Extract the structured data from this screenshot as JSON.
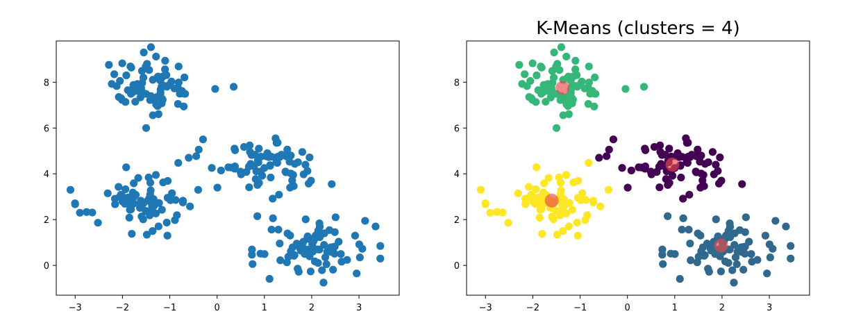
{
  "chart_data": [
    {
      "type": "scatter",
      "title": "",
      "xlabel": "",
      "ylabel": "",
      "xlim": [
        -3.4,
        3.85
      ],
      "ylim": [
        -1.3,
        9.8
      ],
      "xticks": [
        -3,
        -2,
        -1,
        0,
        1,
        2,
        3
      ],
      "yticks": [
        0,
        2,
        4,
        6,
        8
      ],
      "xtick_labels": [
        "−3",
        "−2",
        "−1",
        "0",
        "1",
        "2",
        "3"
      ],
      "ytick_labels": [
        "0",
        "2",
        "4",
        "6",
        "8"
      ],
      "grid": false,
      "point_color": "#1f77b4",
      "clusters": [
        {
          "name": "top-left",
          "center": [
            -1.4,
            7.8
          ],
          "spread": [
            0.55,
            0.55
          ],
          "count": 75
        },
        {
          "name": "middle-right",
          "center": [
            1.0,
            4.4
          ],
          "spread": [
            0.6,
            0.6
          ],
          "count": 75
        },
        {
          "name": "bottom-left",
          "center": [
            -1.6,
            2.8
          ],
          "spread": [
            0.55,
            0.6
          ],
          "count": 75
        },
        {
          "name": "bottom-right",
          "center": [
            2.0,
            0.85
          ],
          "spread": [
            0.55,
            0.55
          ],
          "count": 75
        }
      ],
      "extra_points": [
        [
          -3.1,
          3.3
        ],
        [
          -2.9,
          2.3
        ],
        [
          -0.4,
          3.3
        ],
        [
          3.45,
          0.85
        ],
        [
          3.45,
          0.3
        ],
        [
          3.35,
          1.7
        ],
        [
          2.95,
          -0.35
        ],
        [
          2.25,
          -0.75
        ],
        [
          -1.55,
          9.3
        ],
        [
          0.35,
          7.8
        ],
        [
          0.85,
          2.15
        ],
        [
          -1.05,
          1.3
        ],
        [
          -0.6,
          4.7
        ],
        [
          -1.5,
          6.0
        ]
      ]
    },
    {
      "type": "scatter",
      "title": "K-Means (clusters = 4)",
      "xlabel": "",
      "ylabel": "",
      "xlim": [
        -3.4,
        3.85
      ],
      "ylim": [
        -1.3,
        9.8
      ],
      "xticks": [
        -3,
        -2,
        -1,
        0,
        1,
        2,
        3
      ],
      "yticks": [
        0,
        2,
        4,
        6,
        8
      ],
      "xtick_labels": [
        "−3",
        "−2",
        "−1",
        "0",
        "1",
        "2",
        "3"
      ],
      "ytick_labels": [
        "0",
        "2",
        "4",
        "6",
        "8"
      ],
      "grid": false,
      "cluster_colors": [
        "#35b779",
        "#440154",
        "#fde725",
        "#31688e"
      ],
      "centroids": [
        {
          "x": -1.37,
          "y": 7.75,
          "color": "#e84a4a"
        },
        {
          "x": 0.95,
          "y": 4.4,
          "color": "#e84a4a"
        },
        {
          "x": -1.6,
          "y": 2.83,
          "color": "#e84a4a"
        },
        {
          "x": 1.98,
          "y": 0.87,
          "color": "#e84a4a"
        }
      ],
      "centroid_opacity": 0.65
    }
  ]
}
